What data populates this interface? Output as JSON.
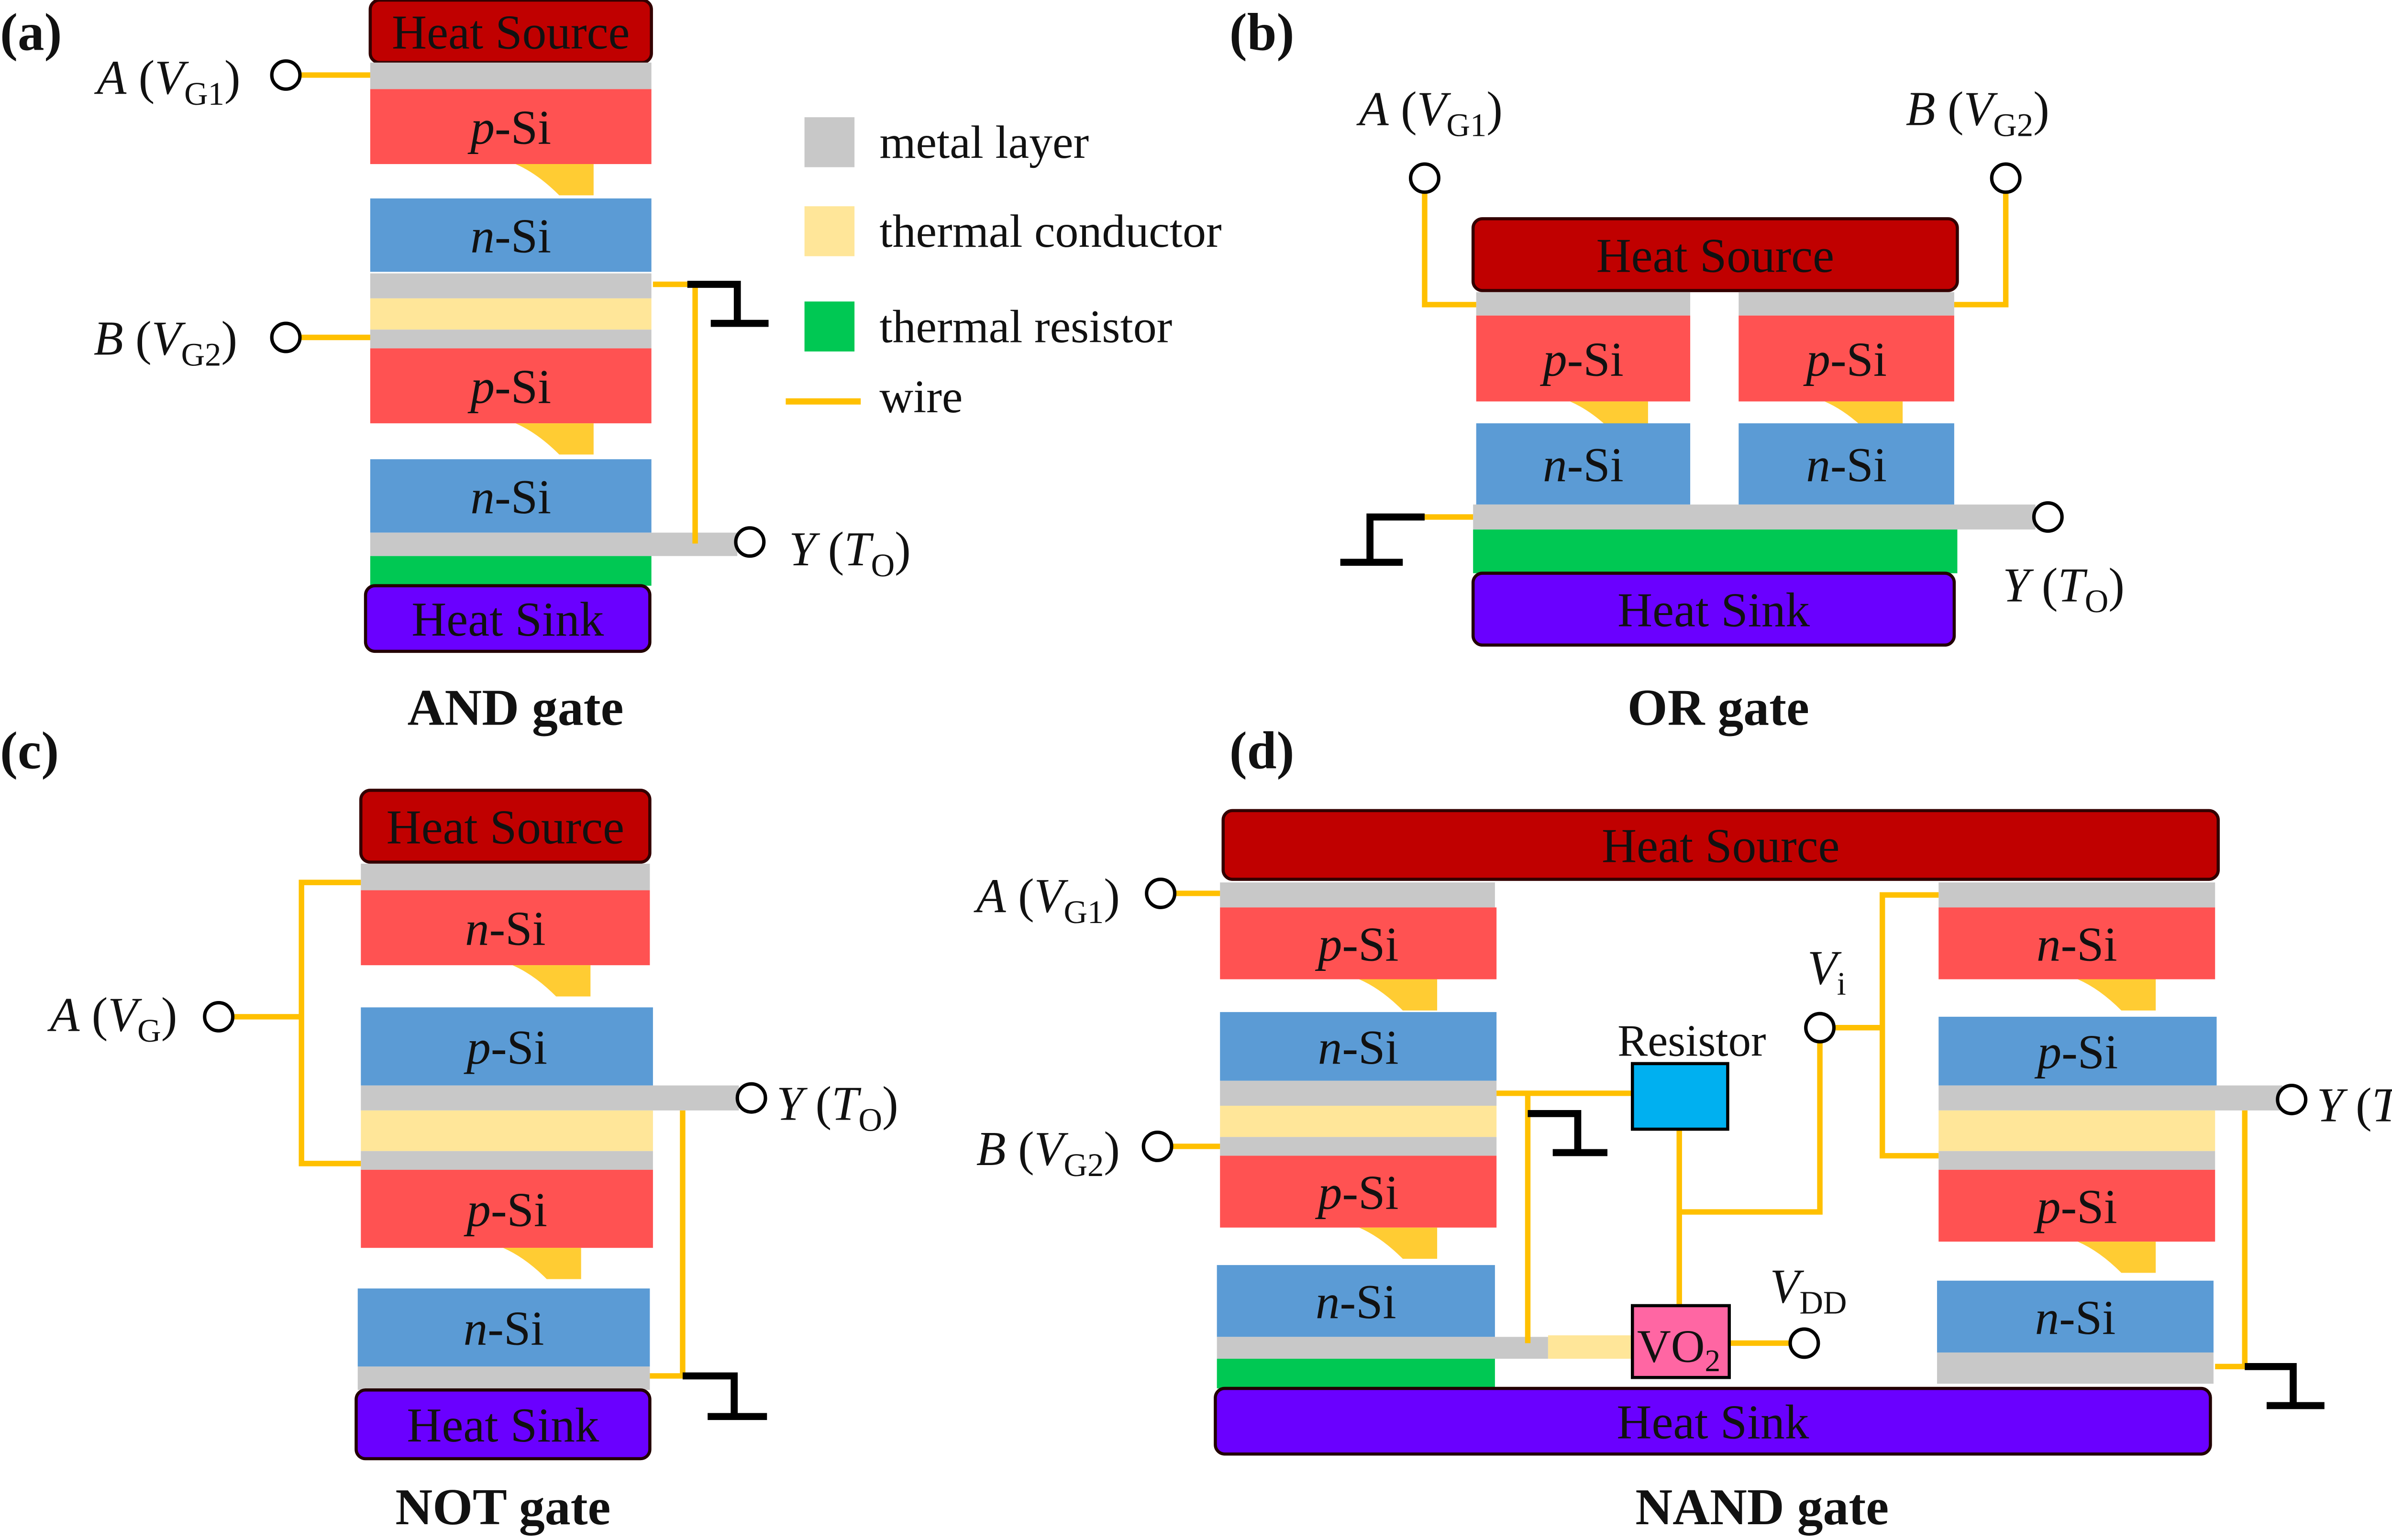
{
  "panels": {
    "a": {
      "tag": "(a)",
      "caption": "AND gate"
    },
    "b": {
      "tag": "(b)",
      "caption": "OR gate"
    },
    "c": {
      "tag": "(c)",
      "caption": "NOT gate"
    },
    "d": {
      "tag": "(d)",
      "caption": "NAND gate"
    }
  },
  "layers": {
    "heat_source": "Heat Source",
    "heat_sink": "Heat Sink",
    "p_si": {
      "italic": "p",
      "rest": "-Si"
    },
    "n_si": {
      "italic": "n",
      "rest": "-Si"
    }
  },
  "terminals": {
    "paren_open": " (",
    "paren_close": ")",
    "A_G1": {
      "name": "A",
      "var": "V",
      "sub": "G1"
    },
    "B_G2": {
      "name": "B",
      "var": "V",
      "sub": "G2"
    },
    "A_G": {
      "name": "A",
      "var": "V",
      "sub": "G"
    },
    "Y_TO": {
      "name": "Y",
      "var": "T",
      "sub": "O"
    },
    "Vi": {
      "var": "V",
      "sub": "i"
    },
    "VDD": {
      "var": "V",
      "sub": "DD"
    }
  },
  "components": {
    "resistor": "Resistor",
    "vo2": {
      "main": "VO",
      "sub": "2"
    }
  },
  "legend": [
    {
      "label": "metal layer",
      "color": "#c8c8c8"
    },
    {
      "label": "thermal conductor",
      "color": "#ffe699"
    },
    {
      "label": "thermal resistor",
      "color": "#00c853"
    },
    {
      "label": "wire",
      "color": "#ffc000"
    }
  ],
  "colors": {
    "heat_source": "#c00000",
    "red_layer": "#ff5252",
    "blue_layer": "#5b9bd5",
    "metal": "#c8c8c8",
    "conductor": "#ffe699",
    "taper": "#ffcc33",
    "thermal_resistor": "#00c853",
    "heat_sink": "#6a00ff",
    "wire": "#ffc000",
    "resistor": "#00b0f0",
    "vo2": "#ff66a3"
  }
}
